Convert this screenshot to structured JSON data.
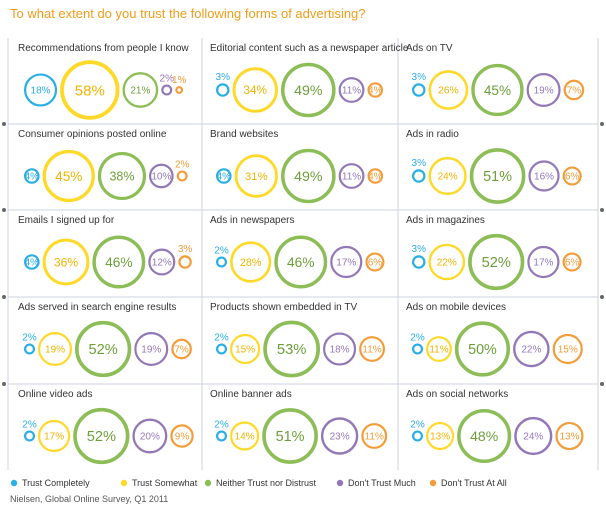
{
  "title": "To what extent do you trust the following forms of advertising?",
  "source": "Nielsen, Global Online Survey, Q1 2011",
  "colors": {
    "trust_completely": "#29aee6",
    "trust_somewhat": "#ffd92a",
    "neither": "#8cbd56",
    "dont_trust_much": "#9378b8",
    "dont_trust_at_all": "#f39c3a",
    "grid": "#cfd3e0",
    "title": "#f39c1a"
  },
  "chart_data": {
    "type": "bubble",
    "legend_position": "bottom",
    "categories": [
      "Trust Completely",
      "Trust Somewhat",
      "Neither Trust nor Distrust",
      "Don't Trust Much",
      "Don't Trust At All"
    ],
    "panels": [
      {
        "name": "Recommendations from people I know",
        "values": [
          18,
          58,
          21,
          2,
          1
        ]
      },
      {
        "name": "Editorial content such as a newspaper article",
        "values": [
          3,
          34,
          49,
          11,
          4
        ]
      },
      {
        "name": "Ads on TV",
        "values": [
          3,
          26,
          45,
          19,
          7
        ]
      },
      {
        "name": "Consumer opinions posted online",
        "values": [
          4,
          45,
          38,
          10,
          2
        ]
      },
      {
        "name": "Brand websites",
        "values": [
          4,
          31,
          49,
          11,
          4
        ]
      },
      {
        "name": "Ads in radio",
        "values": [
          3,
          24,
          51,
          16,
          6
        ]
      },
      {
        "name": "Emails I signed up for",
        "values": [
          4,
          36,
          46,
          12,
          3
        ]
      },
      {
        "name": "Ads in newspapers",
        "values": [
          2,
          28,
          46,
          17,
          6
        ]
      },
      {
        "name": "Ads in magazines",
        "values": [
          3,
          22,
          52,
          17,
          6
        ]
      },
      {
        "name": "Ads served in search engine results",
        "values": [
          2,
          19,
          52,
          19,
          7
        ]
      },
      {
        "name": "Products shown embedded in TV",
        "values": [
          2,
          15,
          53,
          18,
          11
        ]
      },
      {
        "name": "Ads on mobile devices",
        "values": [
          2,
          11,
          50,
          22,
          15
        ]
      },
      {
        "name": "Online video ads",
        "values": [
          2,
          17,
          52,
          20,
          9
        ]
      },
      {
        "name": "Online banner ads",
        "values": [
          2,
          14,
          51,
          23,
          11
        ]
      },
      {
        "name": "Ads on social networks",
        "values": [
          2,
          13,
          48,
          24,
          13
        ]
      }
    ]
  }
}
